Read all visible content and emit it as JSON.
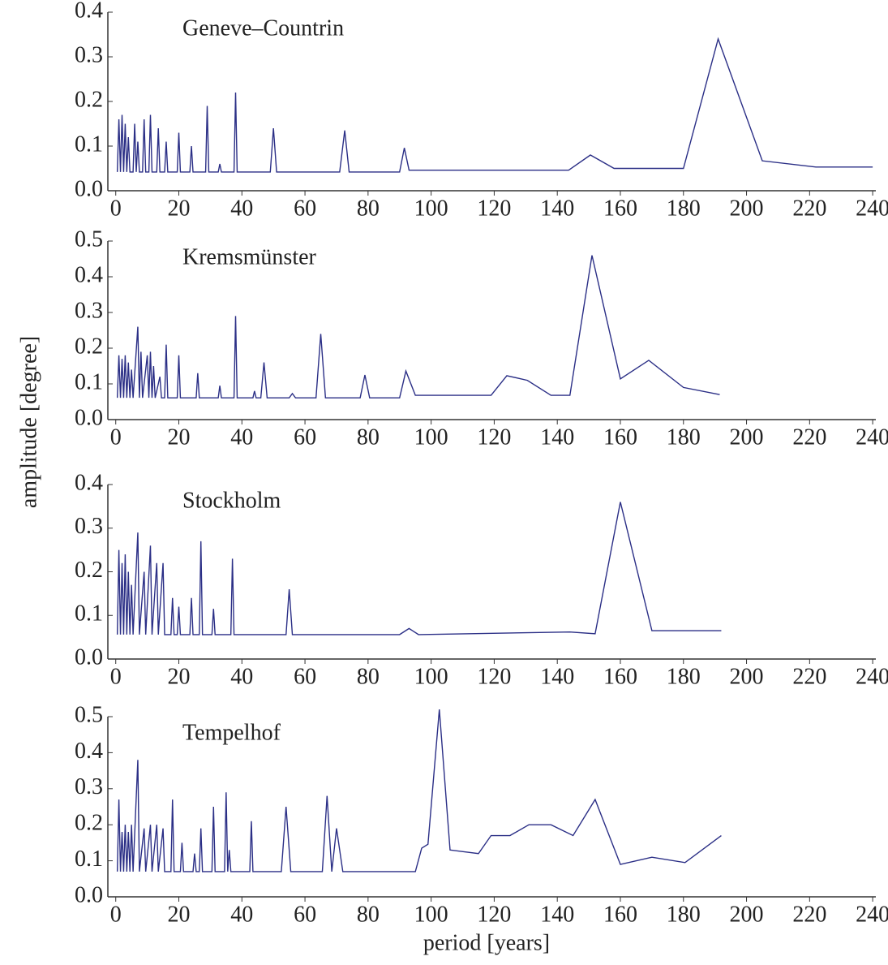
{
  "ylabel": "amplitude [degree]",
  "xlabel": "period [years]",
  "chart_data": [
    {
      "type": "line",
      "title": "Geneve–Countrin",
      "xlim": [
        -2.5,
        241
      ],
      "ylim": [
        0,
        0.4
      ],
      "xticks": [
        0,
        20,
        40,
        60,
        80,
        100,
        120,
        140,
        160,
        180,
        200,
        220,
        240
      ],
      "yticks": [
        {
          "value": 0,
          "label": "0.0"
        },
        0.1,
        0.2,
        0.3,
        0.4
      ],
      "x": [
        0.5,
        1,
        1.5,
        2,
        2.5,
        3,
        3.5,
        4,
        4.5,
        5.5,
        6,
        6.5,
        7,
        7.5,
        8.5,
        9,
        9.5,
        10.5,
        11,
        11.5,
        13,
        13.5,
        14,
        15.5,
        16,
        16.5,
        19.5,
        20,
        20.5,
        23.5,
        24,
        24.5,
        28.5,
        29,
        29.5,
        32.5,
        33,
        33.5,
        37.5,
        38,
        38.5,
        49,
        50,
        51,
        71,
        72.6,
        74,
        90,
        91.5,
        93,
        143.6,
        150.5,
        158,
        180,
        191,
        205,
        222,
        240
      ],
      "series": [
        {
          "color": "#2b2f86",
          "values": [
            0.042,
            0.16,
            0.042,
            0.17,
            0.042,
            0.15,
            0.042,
            0.12,
            0.042,
            0.042,
            0.15,
            0.042,
            0.11,
            0.042,
            0.042,
            0.16,
            0.042,
            0.042,
            0.17,
            0.042,
            0.042,
            0.14,
            0.042,
            0.042,
            0.11,
            0.042,
            0.042,
            0.13,
            0.042,
            0.042,
            0.1,
            0.042,
            0.042,
            0.19,
            0.042,
            0.042,
            0.06,
            0.042,
            0.042,
            0.22,
            0.042,
            0.042,
            0.14,
            0.042,
            0.042,
            0.135,
            0.042,
            0.042,
            0.096,
            0.046,
            0.046,
            0.08,
            0.05,
            0.05,
            0.34,
            0.067,
            0.053,
            0.053
          ]
        }
      ]
    },
    {
      "type": "line",
      "title": "Kremsmünster",
      "xlim": [
        -2.5,
        241
      ],
      "ylim": [
        0,
        0.5
      ],
      "xticks": [
        0,
        20,
        40,
        60,
        80,
        100,
        120,
        140,
        160,
        180,
        200,
        220,
        240
      ],
      "yticks": [
        {
          "value": 0,
          "label": "0.0"
        },
        0.1,
        0.2,
        0.3,
        0.4,
        0.5
      ],
      "x": [
        0.5,
        1,
        1.5,
        2,
        2.5,
        3,
        3.5,
        4,
        4.5,
        5,
        5.5,
        7,
        7.5,
        8,
        8.5,
        10,
        10.5,
        11,
        11.5,
        12,
        12.5,
        14,
        14.5,
        15.5,
        16,
        16.5,
        19.5,
        20,
        20.5,
        25.5,
        26,
        26.5,
        32.5,
        33,
        33.5,
        37.5,
        38,
        38.5,
        43.5,
        44,
        44.5,
        46,
        47,
        48,
        55,
        56,
        57,
        63.5,
        65,
        66.5,
        77.5,
        79,
        80.5,
        90,
        92,
        95,
        119,
        124,
        130.5,
        138,
        144,
        151,
        160,
        169,
        180,
        191.5
      ],
      "series": [
        {
          "color": "#2b2f86",
          "values": [
            0.061,
            0.18,
            0.061,
            0.17,
            0.061,
            0.18,
            0.061,
            0.16,
            0.061,
            0.14,
            0.061,
            0.26,
            0.061,
            0.19,
            0.061,
            0.18,
            0.061,
            0.19,
            0.061,
            0.15,
            0.061,
            0.12,
            0.061,
            0.061,
            0.21,
            0.061,
            0.061,
            0.18,
            0.061,
            0.061,
            0.13,
            0.061,
            0.061,
            0.095,
            0.061,
            0.061,
            0.29,
            0.061,
            0.061,
            0.08,
            0.061,
            0.061,
            0.16,
            0.061,
            0.061,
            0.073,
            0.061,
            0.061,
            0.24,
            0.061,
            0.061,
            0.125,
            0.061,
            0.061,
            0.136,
            0.068,
            0.068,
            0.123,
            0.11,
            0.068,
            0.068,
            0.46,
            0.114,
            0.166,
            0.09,
            0.07
          ]
        }
      ]
    },
    {
      "type": "line",
      "title": "Stockholm",
      "xlim": [
        -2.5,
        241
      ],
      "ylim": [
        0,
        0.4
      ],
      "xticks": [
        0,
        20,
        40,
        60,
        80,
        100,
        120,
        140,
        160,
        180,
        200,
        220,
        240
      ],
      "yticks": [
        {
          "value": 0,
          "label": "0.0"
        },
        0.1,
        0.2,
        0.3,
        0.4
      ],
      "x": [
        0.5,
        1,
        1.5,
        2,
        2.5,
        3,
        3.5,
        4,
        4.5,
        5,
        5.5,
        7,
        7.5,
        9,
        9.5,
        11,
        11.5,
        13,
        13.5,
        15,
        15.5,
        17.5,
        18,
        18.5,
        19.5,
        20,
        20.5,
        23.5,
        24,
        24.5,
        26.5,
        27,
        27.5,
        30.5,
        31,
        31.5,
        36.5,
        37,
        37.5,
        54,
        55,
        56,
        90,
        93,
        96,
        144,
        152,
        160,
        170,
        192
      ],
      "series": [
        {
          "color": "#2b2f86",
          "values": [
            0.056,
            0.25,
            0.056,
            0.22,
            0.056,
            0.24,
            0.056,
            0.2,
            0.056,
            0.17,
            0.056,
            0.29,
            0.056,
            0.2,
            0.056,
            0.26,
            0.056,
            0.22,
            0.056,
            0.22,
            0.056,
            0.056,
            0.14,
            0.056,
            0.056,
            0.12,
            0.056,
            0.056,
            0.14,
            0.056,
            0.056,
            0.27,
            0.056,
            0.056,
            0.115,
            0.056,
            0.056,
            0.23,
            0.056,
            0.056,
            0.16,
            0.056,
            0.056,
            0.07,
            0.056,
            0.062,
            0.058,
            0.36,
            0.065,
            0.065
          ]
        }
      ]
    },
    {
      "type": "line",
      "title": "Tempelhof",
      "xlim": [
        -2.5,
        241
      ],
      "ylim": [
        0,
        0.5
      ],
      "xticks": [
        0,
        20,
        40,
        60,
        80,
        100,
        120,
        140,
        160,
        180,
        200,
        220,
        240
      ],
      "yticks": [
        {
          "value": 0,
          "label": "0.0"
        },
        0.1,
        0.2,
        0.3,
        0.4,
        0.5
      ],
      "x": [
        0.5,
        1,
        1.5,
        2,
        2.5,
        3,
        3.5,
        4,
        4.5,
        5,
        5.5,
        7,
        7.5,
        9,
        9.5,
        11,
        11.5,
        13,
        13.5,
        15,
        15.5,
        17.5,
        18,
        18.5,
        20.5,
        21,
        21.5,
        24.5,
        25,
        25.5,
        26.5,
        27,
        27.5,
        30.5,
        31,
        31.5,
        34.5,
        35,
        35.5,
        36,
        36.5,
        42.5,
        43,
        43.5,
        52.5,
        54,
        55.5,
        65.5,
        67,
        68.5,
        70,
        72,
        95,
        97,
        99,
        102.6,
        106,
        115,
        119,
        125,
        131,
        138,
        145,
        152,
        160,
        170,
        180.5,
        192
      ],
      "series": [
        {
          "color": "#2b2f86",
          "values": [
            0.07,
            0.27,
            0.07,
            0.18,
            0.07,
            0.2,
            0.07,
            0.18,
            0.07,
            0.2,
            0.07,
            0.38,
            0.07,
            0.19,
            0.07,
            0.2,
            0.07,
            0.2,
            0.07,
            0.19,
            0.07,
            0.07,
            0.27,
            0.07,
            0.07,
            0.15,
            0.07,
            0.07,
            0.12,
            0.07,
            0.07,
            0.19,
            0.07,
            0.07,
            0.25,
            0.07,
            0.07,
            0.29,
            0.07,
            0.13,
            0.07,
            0.07,
            0.21,
            0.07,
            0.07,
            0.25,
            0.07,
            0.07,
            0.28,
            0.07,
            0.19,
            0.07,
            0.07,
            0.135,
            0.146,
            0.52,
            0.13,
            0.12,
            0.17,
            0.17,
            0.2,
            0.2,
            0.17,
            0.27,
            0.09,
            0.11,
            0.095,
            0.17
          ]
        }
      ]
    }
  ]
}
